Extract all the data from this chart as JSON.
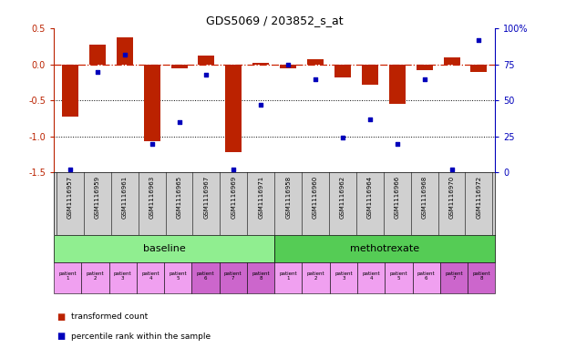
{
  "title": "GDS5069 / 203852_s_at",
  "samples": [
    "GSM1116957",
    "GSM1116959",
    "GSM1116961",
    "GSM1116963",
    "GSM1116965",
    "GSM1116967",
    "GSM1116969",
    "GSM1116971",
    "GSM1116958",
    "GSM1116960",
    "GSM1116962",
    "GSM1116964",
    "GSM1116966",
    "GSM1116968",
    "GSM1116970",
    "GSM1116972"
  ],
  "transformed_count": [
    -0.72,
    0.28,
    0.38,
    -1.07,
    -0.05,
    0.12,
    -1.22,
    0.02,
    -0.05,
    0.07,
    -0.18,
    -0.28,
    -0.55,
    -0.08,
    0.1,
    -0.1
  ],
  "percentile_rank": [
    2,
    70,
    82,
    20,
    35,
    68,
    2,
    47,
    75,
    65,
    24,
    37,
    20,
    65,
    2,
    92
  ],
  "ylim_left": [
    -1.5,
    0.5
  ],
  "ylim_right": [
    0,
    100
  ],
  "yticks_left": [
    -1.5,
    -1.0,
    -0.5,
    0.0,
    0.5
  ],
  "yticks_right": [
    0,
    25,
    50,
    75,
    100
  ],
  "ytick_labels_right": [
    "0",
    "25",
    "50",
    "75",
    "100%"
  ],
  "bar_color": "#bb2200",
  "dot_color": "#0000bb",
  "zero_line_color": "#cc2200",
  "background_color": "#ffffff",
  "legend_tc": "transformed count",
  "legend_pr": "percentile rank within the sample",
  "baseline_color": "#90ee90",
  "methotrexate_color": "#55cc55",
  "patient_color_light": "#f0b0f0",
  "patient_color_dark": "#cc66cc"
}
